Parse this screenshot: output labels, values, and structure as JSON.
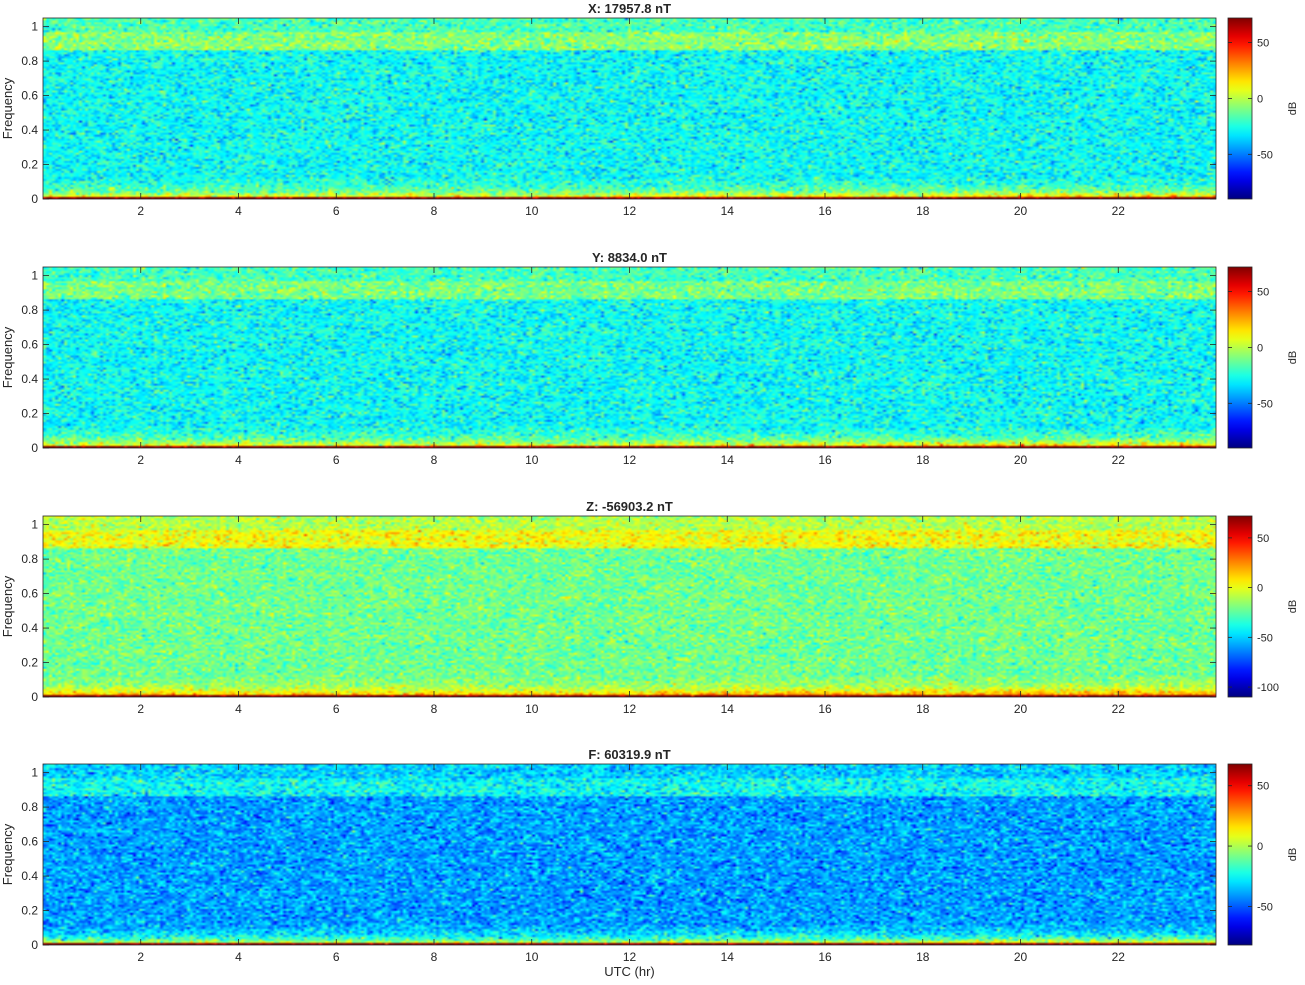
{
  "figure": {
    "xlabel": "UTC (hr)"
  },
  "chart_data": [
    {
      "type": "heatmap",
      "title": "X: 17957.8 nT",
      "ylabel": "Frequency",
      "xlabel": "",
      "xlim": [
        0,
        24
      ],
      "ylim": [
        0,
        1.05
      ],
      "xticks": [
        2,
        4,
        6,
        8,
        10,
        12,
        14,
        16,
        18,
        20,
        22
      ],
      "yticks": [
        0,
        0.2,
        0.4,
        0.6,
        0.8,
        1
      ],
      "colorbar": {
        "label": "dB",
        "range": [
          -90,
          72
        ],
        "ticks": [
          -50,
          0,
          50
        ]
      },
      "colormap": "jet",
      "bands": {
        "background_db": -28,
        "upper_band_db": -8,
        "upper_band_freq": [
          0.86,
          0.97
        ],
        "low_freq_db": 28,
        "dc_db": 72
      }
    },
    {
      "type": "heatmap",
      "title": "Y: 8834.0 nT",
      "ylabel": "Frequency",
      "xlabel": "",
      "xlim": [
        0,
        24
      ],
      "ylim": [
        0,
        1.05
      ],
      "xticks": [
        2,
        4,
        6,
        8,
        10,
        12,
        14,
        16,
        18,
        20,
        22
      ],
      "yticks": [
        0,
        0.2,
        0.4,
        0.6,
        0.8,
        1
      ],
      "colorbar": {
        "label": "dB",
        "range": [
          -90,
          72
        ],
        "ticks": [
          -50,
          0,
          50
        ]
      },
      "colormap": "jet",
      "bands": {
        "background_db": -28,
        "upper_band_db": -10,
        "upper_band_freq": [
          0.86,
          0.97
        ],
        "low_freq_db": 30,
        "dc_db": 72
      }
    },
    {
      "type": "heatmap",
      "title": "Z: -56903.2 nT",
      "ylabel": "Frequency",
      "xlabel": "",
      "xlim": [
        0,
        24
      ],
      "ylim": [
        0,
        1.05
      ],
      "xticks": [
        2,
        4,
        6,
        8,
        10,
        12,
        14,
        16,
        18,
        20,
        22
      ],
      "yticks": [
        0,
        0.2,
        0.4,
        0.6,
        0.8,
        1
      ],
      "colorbar": {
        "label": "dB",
        "range": [
          -110,
          72
        ],
        "ticks": [
          -100,
          -50,
          0,
          50
        ]
      },
      "colormap": "jet",
      "bands": {
        "background_db": -22,
        "upper_band_db": 2,
        "upper_band_freq": [
          0.86,
          0.97
        ],
        "low_freq_db": 35,
        "dc_db": 72
      }
    },
    {
      "type": "heatmap",
      "title": "F: 60319.9 nT",
      "ylabel": "Frequency",
      "xlabel": "UTC (hr)",
      "xlim": [
        0,
        24
      ],
      "ylim": [
        0,
        1.05
      ],
      "xticks": [
        2,
        4,
        6,
        8,
        10,
        12,
        14,
        16,
        18,
        20,
        22
      ],
      "yticks": [
        0,
        0.2,
        0.4,
        0.6,
        0.8,
        1
      ],
      "colorbar": {
        "label": "dB",
        "range": [
          -82,
          68
        ],
        "ticks": [
          -50,
          0,
          50
        ]
      },
      "colormap": "jet",
      "bands": {
        "background_db": -40,
        "upper_band_db": -25,
        "upper_band_freq": [
          0.86,
          0.97
        ],
        "low_freq_db": 22,
        "dc_db": 68
      }
    }
  ]
}
